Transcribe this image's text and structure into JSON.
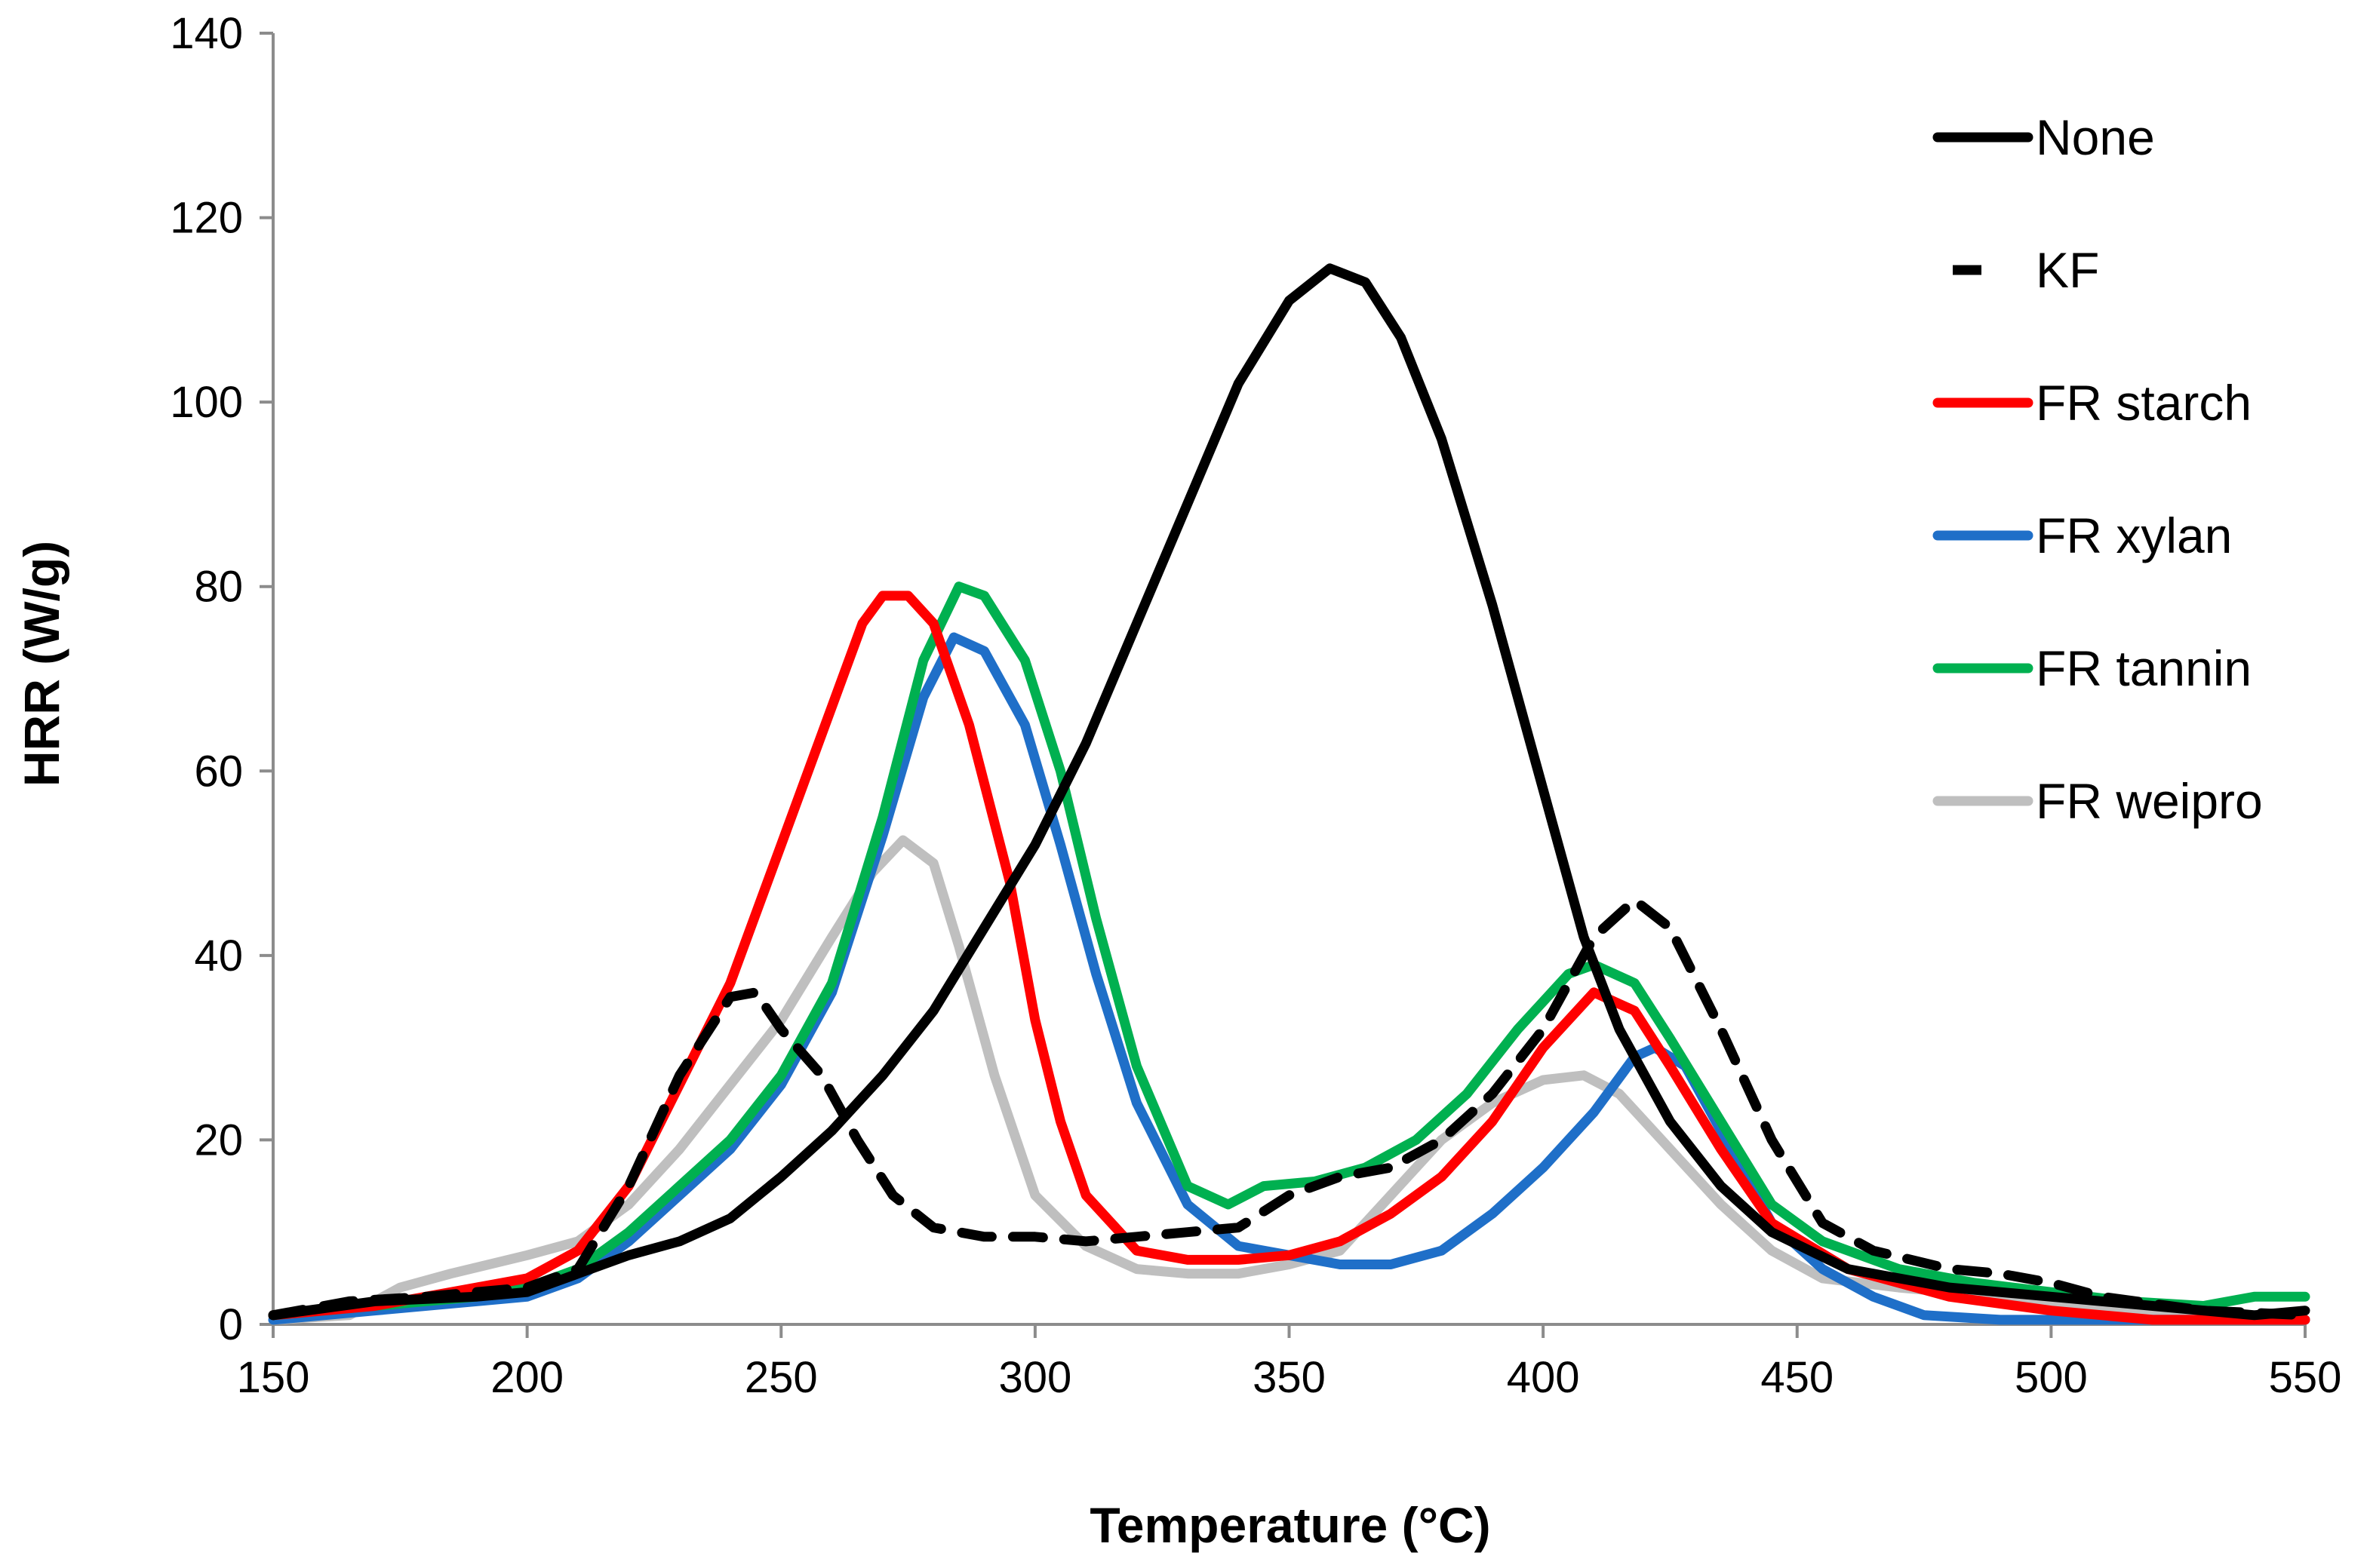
{
  "chart_data": {
    "type": "line",
    "title": "",
    "xlabel": "Temperature (°C)",
    "ylabel": "HRR (W/g)",
    "xlim": [
      150,
      550
    ],
    "ylim": [
      0,
      140
    ],
    "x_ticks": [
      150,
      200,
      250,
      300,
      350,
      400,
      450,
      500,
      550
    ],
    "y_ticks": [
      0,
      20,
      40,
      60,
      80,
      100,
      120,
      140
    ],
    "grid": false,
    "legend_position": "top-right",
    "series": [
      {
        "name": "None",
        "color": "#000000",
        "dash": "solid",
        "points": [
          [
            150,
            1
          ],
          [
            170,
            2.5
          ],
          [
            190,
            3
          ],
          [
            200,
            3.5
          ],
          [
            210,
            5.5
          ],
          [
            220,
            7.5
          ],
          [
            230,
            9
          ],
          [
            240,
            11.5
          ],
          [
            250,
            16
          ],
          [
            260,
            21
          ],
          [
            270,
            27
          ],
          [
            280,
            34
          ],
          [
            290,
            43
          ],
          [
            300,
            52
          ],
          [
            310,
            63
          ],
          [
            320,
            76
          ],
          [
            330,
            89
          ],
          [
            340,
            102
          ],
          [
            350,
            111
          ],
          [
            358,
            114.5
          ],
          [
            365,
            113
          ],
          [
            372,
            107
          ],
          [
            380,
            96
          ],
          [
            390,
            78
          ],
          [
            400,
            58
          ],
          [
            408,
            42
          ],
          [
            415,
            32
          ],
          [
            425,
            22
          ],
          [
            435,
            15
          ],
          [
            445,
            10
          ],
          [
            460,
            6
          ],
          [
            480,
            4
          ],
          [
            500,
            3
          ],
          [
            520,
            2
          ],
          [
            540,
            1
          ],
          [
            550,
            1.5
          ]
        ]
      },
      {
        "name": "KF",
        "color": "#000000",
        "dash": "dashed",
        "points": [
          [
            150,
            1
          ],
          [
            165,
            2.5
          ],
          [
            180,
            3
          ],
          [
            200,
            4
          ],
          [
            210,
            6
          ],
          [
            220,
            15
          ],
          [
            230,
            27
          ],
          [
            240,
            35.5
          ],
          [
            245,
            36
          ],
          [
            250,
            32
          ],
          [
            258,
            27
          ],
          [
            265,
            20
          ],
          [
            272,
            14
          ],
          [
            280,
            10.5
          ],
          [
            290,
            9.5
          ],
          [
            300,
            9.5
          ],
          [
            310,
            9
          ],
          [
            320,
            9.5
          ],
          [
            330,
            10
          ],
          [
            340,
            10.5
          ],
          [
            350,
            14
          ],
          [
            360,
            16
          ],
          [
            370,
            17
          ],
          [
            380,
            20
          ],
          [
            390,
            25
          ],
          [
            400,
            32
          ],
          [
            410,
            42
          ],
          [
            418,
            46
          ],
          [
            425,
            43
          ],
          [
            435,
            32
          ],
          [
            445,
            20
          ],
          [
            455,
            11
          ],
          [
            465,
            8
          ],
          [
            480,
            6
          ],
          [
            490,
            5.5
          ],
          [
            500,
            4.5
          ],
          [
            510,
            3
          ],
          [
            530,
            1.5
          ],
          [
            550,
            1
          ]
        ]
      },
      {
        "name": "FR starch",
        "color": "#ff0000",
        "dash": "solid",
        "points": [
          [
            150,
            1
          ],
          [
            170,
            2
          ],
          [
            190,
            4
          ],
          [
            200,
            5
          ],
          [
            210,
            8
          ],
          [
            220,
            15
          ],
          [
            230,
            26
          ],
          [
            240,
            37
          ],
          [
            250,
            52
          ],
          [
            260,
            67
          ],
          [
            266,
            76
          ],
          [
            270,
            79
          ],
          [
            275,
            79
          ],
          [
            280,
            76
          ],
          [
            287,
            65
          ],
          [
            295,
            48
          ],
          [
            300,
            33
          ],
          [
            305,
            22
          ],
          [
            310,
            14
          ],
          [
            320,
            8
          ],
          [
            330,
            7
          ],
          [
            340,
            7
          ],
          [
            350,
            7.5
          ],
          [
            360,
            9
          ],
          [
            370,
            12
          ],
          [
            380,
            16
          ],
          [
            390,
            22
          ],
          [
            400,
            30
          ],
          [
            410,
            36
          ],
          [
            418,
            34
          ],
          [
            425,
            28
          ],
          [
            435,
            19
          ],
          [
            445,
            11
          ],
          [
            460,
            6
          ],
          [
            480,
            3
          ],
          [
            500,
            1.5
          ],
          [
            520,
            0.5
          ],
          [
            550,
            0.5
          ]
        ]
      },
      {
        "name": "FR xylan",
        "color": "#1f6fc8",
        "dash": "solid",
        "points": [
          [
            150,
            0.5
          ],
          [
            170,
            1.5
          ],
          [
            190,
            2.5
          ],
          [
            200,
            3
          ],
          [
            210,
            5
          ],
          [
            220,
            9
          ],
          [
            230,
            14
          ],
          [
            240,
            19
          ],
          [
            250,
            26
          ],
          [
            260,
            36
          ],
          [
            270,
            53
          ],
          [
            278,
            68
          ],
          [
            284,
            74.5
          ],
          [
            290,
            73
          ],
          [
            298,
            65
          ],
          [
            305,
            52
          ],
          [
            312,
            38
          ],
          [
            320,
            24
          ],
          [
            330,
            13
          ],
          [
            340,
            8.5
          ],
          [
            350,
            7.5
          ],
          [
            360,
            6.5
          ],
          [
            370,
            6.5
          ],
          [
            380,
            8
          ],
          [
            390,
            12
          ],
          [
            400,
            17
          ],
          [
            410,
            23
          ],
          [
            418,
            29
          ],
          [
            422,
            30
          ],
          [
            428,
            28
          ],
          [
            435,
            21
          ],
          [
            445,
            11
          ],
          [
            455,
            6
          ],
          [
            465,
            3
          ],
          [
            475,
            1
          ],
          [
            490,
            0.5
          ],
          [
            550,
            0.5
          ]
        ]
      },
      {
        "name": "FR tannin",
        "color": "#00b050",
        "dash": "solid",
        "points": [
          [
            150,
            1
          ],
          [
            170,
            2
          ],
          [
            190,
            3
          ],
          [
            200,
            4
          ],
          [
            210,
            6
          ],
          [
            220,
            10
          ],
          [
            230,
            15
          ],
          [
            240,
            20
          ],
          [
            250,
            27
          ],
          [
            260,
            37
          ],
          [
            270,
            55
          ],
          [
            278,
            72
          ],
          [
            285,
            80
          ],
          [
            290,
            79
          ],
          [
            298,
            72
          ],
          [
            305,
            60
          ],
          [
            312,
            44
          ],
          [
            320,
            28
          ],
          [
            330,
            15
          ],
          [
            338,
            13
          ],
          [
            345,
            15
          ],
          [
            355,
            15.5
          ],
          [
            365,
            17
          ],
          [
            375,
            20
          ],
          [
            385,
            25
          ],
          [
            395,
            32
          ],
          [
            405,
            38
          ],
          [
            410,
            39
          ],
          [
            418,
            37
          ],
          [
            425,
            31
          ],
          [
            435,
            22
          ],
          [
            445,
            13
          ],
          [
            455,
            9
          ],
          [
            470,
            6
          ],
          [
            485,
            4.5
          ],
          [
            500,
            3.5
          ],
          [
            515,
            2.5
          ],
          [
            530,
            2
          ],
          [
            540,
            3
          ],
          [
            550,
            3
          ]
        ]
      },
      {
        "name": "FR weipro",
        "color": "#bfbfbf",
        "dash": "solid",
        "points": [
          [
            150,
            0.5
          ],
          [
            165,
            1
          ],
          [
            175,
            4
          ],
          [
            185,
            5.5
          ],
          [
            200,
            7.5
          ],
          [
            210,
            9
          ],
          [
            220,
            13
          ],
          [
            230,
            19
          ],
          [
            240,
            26
          ],
          [
            250,
            33
          ],
          [
            260,
            42
          ],
          [
            268,
            49
          ],
          [
            274,
            52.5
          ],
          [
            280,
            50
          ],
          [
            285,
            41
          ],
          [
            292,
            27
          ],
          [
            300,
            14
          ],
          [
            310,
            8.5
          ],
          [
            320,
            6
          ],
          [
            330,
            5.5
          ],
          [
            340,
            5.5
          ],
          [
            350,
            6.5
          ],
          [
            360,
            8
          ],
          [
            370,
            14
          ],
          [
            380,
            20
          ],
          [
            390,
            24
          ],
          [
            400,
            26.5
          ],
          [
            408,
            27
          ],
          [
            415,
            25
          ],
          [
            425,
            19
          ],
          [
            435,
            13
          ],
          [
            445,
            8
          ],
          [
            455,
            5
          ],
          [
            470,
            4
          ],
          [
            480,
            3.5
          ],
          [
            490,
            3
          ],
          [
            510,
            2
          ],
          [
            530,
            0.5
          ],
          [
            550,
            0.5
          ]
        ]
      }
    ]
  }
}
